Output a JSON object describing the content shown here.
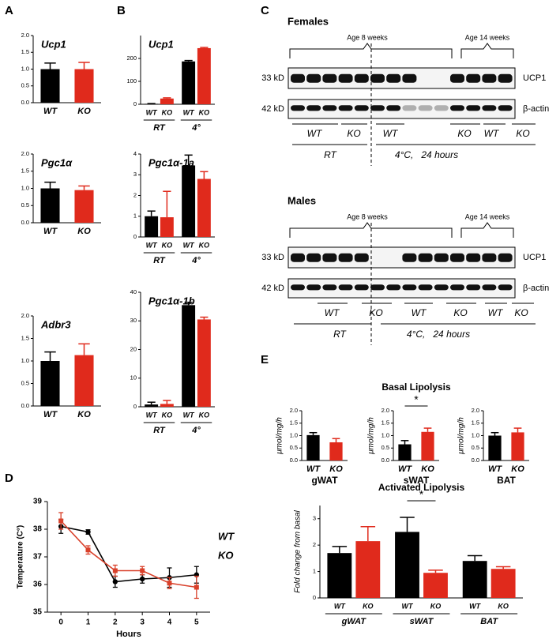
{
  "panel_labels": [
    "A",
    "B",
    "C",
    "D",
    "E"
  ],
  "blots": [
    {
      "title": "Females",
      "age_labels": [
        "Age 8 weeks",
        "Age 14 weeks"
      ],
      "rows": [
        {
          "size": "33 kD",
          "protein": "UCP1"
        },
        {
          "size": "42 kD",
          "protein": "β-actin"
        }
      ],
      "genotypes": [
        "WT",
        "KO",
        "WT",
        "KO",
        "WT",
        "KO"
      ],
      "conditions": [
        "RT",
        "4°C,   24 hours"
      ]
    },
    {
      "title": "Males",
      "age_labels": [
        "Age 8 weeks",
        "Age 14 weeks"
      ],
      "rows": [
        {
          "size": "33 kD",
          "protein": "UCP1"
        },
        {
          "size": "42 kD",
          "protein": "β-actin"
        }
      ],
      "genotypes": [
        "WT",
        "KO",
        "WT",
        "KO",
        "WT",
        "KO"
      ],
      "conditions": [
        "RT",
        "4°C,   24 hours"
      ]
    }
  ],
  "panel_e": {
    "basal_title": "Basal Lipolysis"
  },
  "chart_data": [
    {
      "type": "bar",
      "title": "Ucp1",
      "categories": [
        "WT",
        "KO"
      ],
      "values": [
        1.0,
        1.0
      ],
      "errors": [
        0.18,
        0.2
      ],
      "colors": [
        "#000000",
        "#e02a1c"
      ],
      "ylim": [
        0,
        2
      ],
      "yticks": [
        {
          "value": 0,
          "label": "0.0"
        },
        {
          "value": 0.5,
          "label": "0.5"
        },
        {
          "value": 1,
          "label": "1.0"
        },
        {
          "value": 1.5,
          "label": "1.5"
        },
        {
          "value": 2,
          "label": "2.0"
        }
      ]
    },
    {
      "type": "bar",
      "title": "Pgc1α",
      "categories": [
        "WT",
        "KO"
      ],
      "values": [
        1.0,
        0.95
      ],
      "errors": [
        0.18,
        0.12
      ],
      "colors": [
        "#000000",
        "#e02a1c"
      ],
      "ylim": [
        0,
        2
      ],
      "yticks": [
        {
          "value": 0,
          "label": "0.0"
        },
        {
          "value": 0.5,
          "label": "0.5"
        },
        {
          "value": 1,
          "label": "1.0"
        },
        {
          "value": 1.5,
          "label": "1.5"
        },
        {
          "value": 2,
          "label": "2.0"
        }
      ]
    },
    {
      "type": "bar",
      "title": "Adbr3",
      "categories": [
        "WT",
        "KO"
      ],
      "values": [
        1.0,
        1.13
      ],
      "errors": [
        0.2,
        0.25
      ],
      "colors": [
        "#000000",
        "#e02a1c"
      ],
      "ylim": [
        0,
        2
      ],
      "yticks": [
        {
          "value": 0,
          "label": "0.0"
        },
        {
          "value": 0.5,
          "label": "0.5"
        },
        {
          "value": 1,
          "label": "1.0"
        },
        {
          "value": 1.5,
          "label": "1.5"
        },
        {
          "value": 2,
          "label": "2.0"
        }
      ]
    },
    {
      "type": "bar",
      "title": "Ucp1",
      "categories": [
        "WT",
        "KO",
        "WT",
        "KO"
      ],
      "groups": [
        "RT",
        "4°"
      ],
      "values": [
        2,
        25,
        187,
        245
      ],
      "errors": [
        1,
        3,
        4,
        3
      ],
      "colors": [
        "#000000",
        "#e02a1c",
        "#000000",
        "#e02a1c"
      ],
      "ylim": [
        0,
        300
      ],
      "yticks": [
        0,
        100,
        200
      ]
    },
    {
      "type": "bar",
      "title": "Pgc1α-1a",
      "categories": [
        "WT",
        "KO",
        "WT",
        "KO"
      ],
      "groups": [
        "RT",
        "4°"
      ],
      "values": [
        1.0,
        0.95,
        3.45,
        2.8
      ],
      "errors": [
        0.25,
        1.25,
        0.5,
        0.35
      ],
      "colors": [
        "#000000",
        "#e02a1c",
        "#000000",
        "#e02a1c"
      ],
      "ylim": [
        0,
        4
      ],
      "yticks": [
        0,
        1,
        2,
        3,
        4
      ]
    },
    {
      "type": "bar",
      "title": "Pgc1α-1b",
      "categories": [
        "WT",
        "KO",
        "WT",
        "KO"
      ],
      "groups": [
        "RT",
        "4°"
      ],
      "values": [
        0.8,
        1.0,
        35.5,
        30.5
      ],
      "errors": [
        0.8,
        1.2,
        1.0,
        0.8
      ],
      "colors": [
        "#000000",
        "#e02a1c",
        "#000000",
        "#e02a1c"
      ],
      "ylim": [
        0,
        40
      ],
      "yticks": [
        0,
        10,
        20,
        30,
        40
      ]
    },
    {
      "type": "line",
      "xlabel": "Hours",
      "ylabel": "Temperature (C°)",
      "x": [
        0,
        1,
        2,
        3,
        4,
        5
      ],
      "xlim": [
        -0.5,
        5.5
      ],
      "xticks": [
        0,
        1,
        2,
        3,
        4,
        5
      ],
      "ylim": [
        35,
        39
      ],
      "yticks": [
        35,
        36,
        37,
        38,
        39
      ],
      "series": [
        {
          "name": "WT",
          "color": "#000000",
          "values": [
            38.1,
            37.9,
            36.1,
            36.2,
            36.25,
            36.35
          ],
          "errors": [
            0.25,
            0.08,
            0.2,
            0.15,
            0.35,
            0.3
          ]
        },
        {
          "name": "KO",
          "color": "#d9402a",
          "values": [
            38.3,
            37.25,
            36.5,
            36.5,
            36.05,
            35.9
          ],
          "errors": [
            0.3,
            0.15,
            0.2,
            0.15,
            0.2,
            0.4
          ]
        }
      ]
    },
    {
      "type": "bar",
      "xlabel": "gWAT",
      "ylabel": "μmol/mg/h",
      "categories": [
        "WT",
        "KO"
      ],
      "values": [
        1.02,
        0.73
      ],
      "errors": [
        0.1,
        0.15
      ],
      "colors": [
        "#000000",
        "#e02a1c"
      ],
      "ylim": [
        0,
        2
      ],
      "yticks": [
        {
          "value": 0,
          "label": "0.0"
        },
        {
          "value": 0.5,
          "label": "0.5"
        },
        {
          "value": 1,
          "label": "1.0"
        },
        {
          "value": 1.5,
          "label": "1.5"
        },
        {
          "value": 2,
          "label": "2.0"
        }
      ]
    },
    {
      "type": "bar",
      "xlabel": "sWAT",
      "ylabel": "μmol/mg/h",
      "annotation": "*",
      "categories": [
        "WT",
        "KO"
      ],
      "values": [
        0.65,
        1.15
      ],
      "errors": [
        0.15,
        0.15
      ],
      "colors": [
        "#000000",
        "#e02a1c"
      ],
      "ylim": [
        0,
        2
      ],
      "yticks": [
        {
          "value": 0,
          "label": "0.0"
        },
        {
          "value": 0.5,
          "label": "0.5"
        },
        {
          "value": 1,
          "label": "1.0"
        },
        {
          "value": 1.5,
          "label": "1.5"
        },
        {
          "value": 2,
          "label": "2.0"
        }
      ]
    },
    {
      "type": "bar",
      "xlabel": "BAT",
      "ylabel": "μmol/mg/h",
      "categories": [
        "WT",
        "KO"
      ],
      "values": [
        1.0,
        1.13
      ],
      "errors": [
        0.12,
        0.17
      ],
      "colors": [
        "#000000",
        "#e02a1c"
      ],
      "ylim": [
        0,
        2
      ],
      "yticks": [
        {
          "value": 0,
          "label": "0.0"
        },
        {
          "value": 0.5,
          "label": "0.5"
        },
        {
          "value": 1,
          "label": "1.0"
        },
        {
          "value": 1.5,
          "label": "1.5"
        },
        {
          "value": 2,
          "label": "2.0"
        }
      ]
    },
    {
      "type": "bar",
      "title": "Activated Lipolysis",
      "ylabel": "Fold change from basal",
      "annotation": "*",
      "categories": [
        "WT",
        "KO",
        "WT",
        "KO",
        "WT",
        "KO"
      ],
      "groups": [
        "gWAT",
        "sWAT",
        "BAT"
      ],
      "values": [
        1.7,
        2.15,
        2.5,
        0.95,
        1.4,
        1.1
      ],
      "errors": [
        0.25,
        0.55,
        0.55,
        0.1,
        0.2,
        0.08
      ],
      "colors": [
        "#000000",
        "#e02a1c",
        "#000000",
        "#e02a1c",
        "#000000",
        "#e02a1c"
      ],
      "ylim": [
        0,
        3.5
      ],
      "yticks": [
        0,
        1,
        2,
        3
      ]
    }
  ]
}
